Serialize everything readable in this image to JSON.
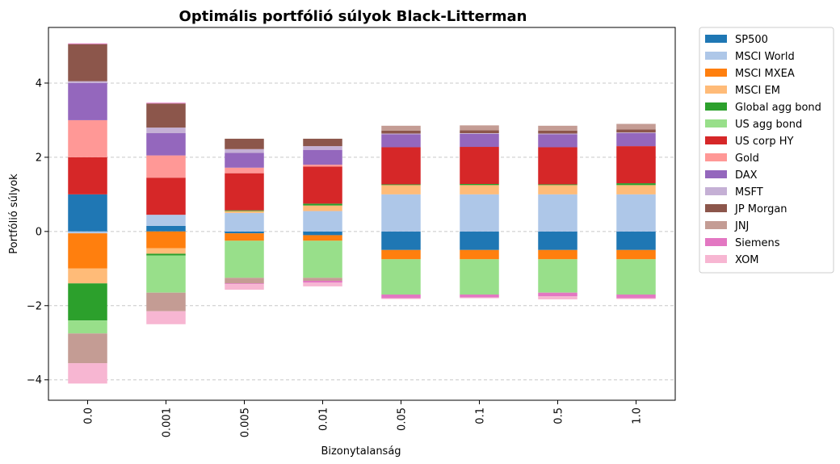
{
  "chart_data": {
    "type": "bar",
    "stacked": true,
    "title": "Optimális portfólió súlyok Black-Litterman",
    "xlabel": "Bizonytalanság",
    "ylabel": "Portfólió súlyok",
    "ylim": [
      -4.55,
      5.5
    ],
    "yticks": [
      -4,
      -2,
      0,
      2,
      4
    ],
    "ytick_labels": [
      "−4",
      "−2",
      "0",
      "2",
      "4"
    ],
    "grid": "horizontal-dashed",
    "legend_position": "outside-right",
    "categories": [
      "0.0",
      "0.001",
      "0.005",
      "0.01",
      "0.05",
      "0.1",
      "0.5",
      "1.0"
    ],
    "series": [
      {
        "name": "SP500",
        "color": "#1f77b4",
        "values": [
          1.0,
          0.15,
          -0.05,
          -0.1,
          -0.5,
          -0.5,
          -0.5,
          -0.5
        ]
      },
      {
        "name": "MSCI World",
        "color": "#aec7e8",
        "values": [
          -0.05,
          0.3,
          0.5,
          0.55,
          1.0,
          1.0,
          1.0,
          1.0
        ]
      },
      {
        "name": "MSCI MXEA",
        "color": "#ff7f0e",
        "values": [
          -0.95,
          -0.45,
          -0.2,
          -0.15,
          -0.25,
          -0.25,
          -0.25,
          -0.25
        ]
      },
      {
        "name": "MSCI EM",
        "color": "#ffbb78",
        "values": [
          -0.4,
          -0.15,
          0.05,
          0.15,
          0.25,
          0.25,
          0.25,
          0.25
        ]
      },
      {
        "name": "Global agg bond",
        "color": "#2ca02c",
        "values": [
          -1.0,
          -0.05,
          0.02,
          0.05,
          0.02,
          0.03,
          0.02,
          0.05
        ]
      },
      {
        "name": "US agg bond",
        "color": "#98df8a",
        "values": [
          -0.35,
          -1.0,
          -1.0,
          -1.0,
          -0.95,
          -0.95,
          -0.9,
          -0.95
        ]
      },
      {
        "name": "US corp HY",
        "color": "#d62728",
        "values": [
          1.0,
          1.0,
          1.0,
          1.0,
          1.0,
          1.0,
          1.0,
          1.0
        ]
      },
      {
        "name": "Gold",
        "color": "#ff9896",
        "values": [
          1.0,
          0.6,
          0.15,
          0.05,
          0.0,
          0.0,
          0.0,
          0.0
        ]
      },
      {
        "name": "DAX",
        "color": "#9467bd",
        "values": [
          1.0,
          0.6,
          0.4,
          0.4,
          0.35,
          0.35,
          0.35,
          0.35
        ]
      },
      {
        "name": "MSFT",
        "color": "#c5b0d5",
        "values": [
          0.05,
          0.15,
          0.1,
          0.1,
          0.02,
          0.02,
          0.02,
          0.02
        ]
      },
      {
        "name": "JP Morgan",
        "color": "#8c564b",
        "values": [
          1.0,
          0.65,
          0.28,
          0.2,
          0.08,
          0.08,
          0.08,
          0.08
        ]
      },
      {
        "name": "JNJ",
        "color": "#c49c94",
        "values": [
          -0.8,
          -0.5,
          -0.15,
          -0.08,
          0.13,
          0.13,
          0.13,
          0.15
        ]
      },
      {
        "name": "Siemens",
        "color": "#e377c2",
        "values": [
          0.02,
          0.02,
          -0.02,
          -0.05,
          -0.1,
          -0.08,
          -0.1,
          -0.1
        ]
      },
      {
        "name": "XOM",
        "color": "#f7b6d2",
        "values": [
          -0.55,
          -0.35,
          -0.15,
          -0.1,
          -0.02,
          -0.02,
          -0.08,
          -0.02
        ]
      }
    ]
  }
}
